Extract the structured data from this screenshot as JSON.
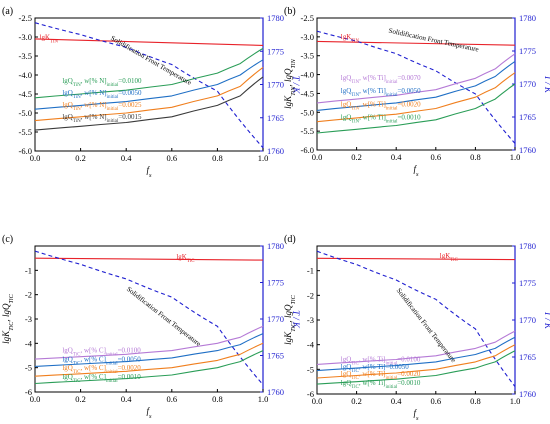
{
  "chart_data": [
    {
      "type": "line",
      "panel_label": "(a)",
      "xlabel": "f_s",
      "ylabel": "",
      "y2label": "T / K",
      "xlim": [
        0,
        1
      ],
      "ylim": [
        -6,
        -2.5
      ],
      "y2lim": [
        1760,
        1780
      ],
      "xticks": [
        "0.0",
        "0.2",
        "0.4",
        "0.6",
        "0.8",
        "1.0"
      ],
      "yticks": [
        "-2.5",
        "-3.0",
        "-3.5",
        "-4.0",
        "-4.5",
        "-5.0",
        "-5.5",
        "-6.0"
      ],
      "y2ticks": [
        "1780",
        "1775",
        "1770",
        "1765",
        "1760"
      ],
      "annotations": [
        {
          "text": "lgK_TiN",
          "color": "#e8232a"
        },
        {
          "text": "Solidification Front Temperature",
          "color": "#000000"
        },
        {
          "text": "lgQ_TiN, w[% N]_initial=0.0100",
          "color": "#2a9d57"
        },
        {
          "text": "lgQ_TiN, w[% N]_initial=0.0050",
          "color": "#1f6fc5"
        },
        {
          "text": "lgQ_TiN, w[% N]_initial=0.0025",
          "color": "#f07f1e"
        },
        {
          "text": "lgQ_TiN, w[% N]_initial=0.0015",
          "color": "#3a3a3a"
        }
      ],
      "series": [
        {
          "name": "lgK",
          "color": "#e8232a",
          "x": [
            0,
            1
          ],
          "y": [
            -3.05,
            -3.22
          ]
        },
        {
          "name": "T",
          "color": "#1f1fd0",
          "axis": "right",
          "dashed": true,
          "x": [
            0,
            0.2,
            0.4,
            0.6,
            0.8,
            1.0
          ],
          "y": [
            1779.3,
            1777.5,
            1775.6,
            1773.0,
            1769.0,
            1760.5
          ]
        },
        {
          "name": "0.0100",
          "color": "#2a9d57",
          "x": [
            0,
            0.2,
            0.4,
            0.6,
            0.8,
            0.9,
            1.0
          ],
          "y": [
            -4.6,
            -4.5,
            -4.4,
            -4.25,
            -3.95,
            -3.7,
            -3.3
          ]
        },
        {
          "name": "0.0050",
          "color": "#1f6fc5",
          "x": [
            0,
            0.2,
            0.4,
            0.6,
            0.8,
            0.9,
            1.0
          ],
          "y": [
            -4.9,
            -4.8,
            -4.7,
            -4.55,
            -4.25,
            -4.0,
            -3.6
          ]
        },
        {
          "name": "0.0025",
          "color": "#f07f1e",
          "x": [
            0,
            0.2,
            0.4,
            0.6,
            0.8,
            0.9,
            1.0
          ],
          "y": [
            -5.2,
            -5.1,
            -5.0,
            -4.85,
            -4.55,
            -4.3,
            -3.8
          ]
        },
        {
          "name": "0.0015",
          "color": "#3a3a3a",
          "x": [
            0,
            0.2,
            0.4,
            0.6,
            0.8,
            0.9,
            1.0
          ],
          "y": [
            -5.45,
            -5.35,
            -5.25,
            -5.1,
            -4.8,
            -4.55,
            -4.05
          ]
        }
      ]
    },
    {
      "type": "line",
      "panel_label": "(b)",
      "xlabel": "f_s",
      "ylabel": "lgK_TiN, lgQ_TiN",
      "y2label": "T / K",
      "xlim": [
        0,
        1
      ],
      "ylim": [
        -6,
        -2.5
      ],
      "y2lim": [
        1760,
        1780
      ],
      "xticks": [
        "0.0",
        "0.2",
        "0.4",
        "0.6",
        "0.8",
        "1.0"
      ],
      "yticks": [
        "-2.5",
        "-3.0",
        "-3.5",
        "-4.0",
        "-4.5",
        "-5.0",
        "-5.5",
        "-6.0"
      ],
      "y2ticks": [
        "1780",
        "1775",
        "1770",
        "1765",
        "1760"
      ],
      "annotations": [
        {
          "text": "lgK_TiN",
          "color": "#e8232a"
        },
        {
          "text": "Solidification Front Temperature",
          "color": "#000000"
        },
        {
          "text": "lgQ_TiN, w[% Ti]_initial=0.0070",
          "color": "#b57ad6"
        },
        {
          "text": "lgQ_TiN, w[% Ti]_initial=0.0050",
          "color": "#1f6fc5"
        },
        {
          "text": "lgQ_TiN, w[% Ti]_initial=0.0020",
          "color": "#f07f1e"
        },
        {
          "text": "lgQ_TiN, w[% Ti]_initial=0.0010",
          "color": "#2a9d57"
        }
      ],
      "series": [
        {
          "name": "lgK",
          "color": "#e8232a",
          "x": [
            0,
            1
          ],
          "y": [
            -3.12,
            -3.22
          ]
        },
        {
          "name": "T",
          "color": "#1f1fd0",
          "axis": "right",
          "dashed": true,
          "x": [
            0,
            0.2,
            0.4,
            0.6,
            0.8,
            1.0
          ],
          "y": [
            1778.0,
            1776.5,
            1774.6,
            1772.0,
            1768.5,
            1761.0
          ]
        },
        {
          "name": "0.0070",
          "color": "#b57ad6",
          "x": [
            0,
            0.2,
            0.4,
            0.6,
            0.8,
            0.9,
            1.0
          ],
          "y": [
            -4.75,
            -4.65,
            -4.55,
            -4.4,
            -4.1,
            -3.85,
            -3.45
          ]
        },
        {
          "name": "0.0050",
          "color": "#1f6fc5",
          "x": [
            0,
            0.2,
            0.4,
            0.6,
            0.8,
            0.9,
            1.0
          ],
          "y": [
            -4.95,
            -4.85,
            -4.75,
            -4.6,
            -4.3,
            -4.05,
            -3.65
          ]
        },
        {
          "name": "0.0020",
          "color": "#f07f1e",
          "x": [
            0,
            0.2,
            0.4,
            0.6,
            0.8,
            0.9,
            1.0
          ],
          "y": [
            -5.25,
            -5.15,
            -5.05,
            -4.9,
            -4.6,
            -4.35,
            -3.95
          ]
        },
        {
          "name": "0.0010",
          "color": "#2a9d57",
          "x": [
            0,
            0.2,
            0.4,
            0.6,
            0.8,
            0.9,
            1.0
          ],
          "y": [
            -5.55,
            -5.45,
            -5.35,
            -5.2,
            -4.9,
            -4.65,
            -4.25
          ]
        }
      ]
    },
    {
      "type": "line",
      "panel_label": "(c)",
      "xlabel": "f_s",
      "ylabel": "lgK_TiC, lgQ_TiC",
      "y2label": "T / K",
      "xlim": [
        0,
        1
      ],
      "ylim": [
        -6,
        0
      ],
      "y2lim": [
        1760,
        1780
      ],
      "xticks": [
        "0.0",
        "0.2",
        "0.4",
        "0.6",
        "0.8",
        "1.0"
      ],
      "yticks": [
        "-1",
        "-2",
        "-3",
        "-4",
        "-5",
        "-6"
      ],
      "y2ticks": [
        "1780",
        "1775",
        "1770",
        "1765",
        "1760"
      ],
      "annotations": [
        {
          "text": "lgK_TiC",
          "color": "#e8232a"
        },
        {
          "text": "Solidification Front Temperature",
          "color": "#000000"
        },
        {
          "text": "lgQ_TiC, w[% C]_initial=0.0100",
          "color": "#b57ad6"
        },
        {
          "text": "lgQ_TiC, w[% C]_initial=0.0050",
          "color": "#1f6fc5"
        },
        {
          "text": "lgQ_TiC, w[% C]_initial=0.0020",
          "color": "#f07f1e"
        },
        {
          "text": "lgQ_TiC, w[% C]_initial=0.0010",
          "color": "#2a9d57"
        }
      ],
      "series": [
        {
          "name": "lgK",
          "color": "#e8232a",
          "x": [
            0,
            1
          ],
          "y": [
            -0.5,
            -0.58
          ]
        },
        {
          "name": "T",
          "color": "#1f1fd0",
          "axis": "right",
          "dashed": true,
          "x": [
            0,
            0.2,
            0.4,
            0.6,
            0.8,
            1.0
          ],
          "y": [
            1779.3,
            1777.5,
            1775.5,
            1773.0,
            1769.0,
            1761.0
          ]
        },
        {
          "name": "0.0100",
          "color": "#b57ad6",
          "x": [
            0,
            0.2,
            0.4,
            0.6,
            0.8,
            0.9,
            1.0
          ],
          "y": [
            -4.65,
            -4.55,
            -4.45,
            -4.3,
            -4.0,
            -3.75,
            -3.3
          ]
        },
        {
          "name": "0.0050",
          "color": "#1f6fc5",
          "x": [
            0,
            0.2,
            0.4,
            0.6,
            0.8,
            0.9,
            1.0
          ],
          "y": [
            -4.95,
            -4.85,
            -4.75,
            -4.6,
            -4.3,
            -4.05,
            -3.6
          ]
        },
        {
          "name": "0.0020",
          "color": "#f07f1e",
          "x": [
            0,
            0.2,
            0.4,
            0.6,
            0.8,
            0.9,
            1.0
          ],
          "y": [
            -5.35,
            -5.25,
            -5.15,
            -5.0,
            -4.7,
            -4.45,
            -4.0
          ]
        },
        {
          "name": "0.0010",
          "color": "#2a9d57",
          "x": [
            0,
            0.2,
            0.4,
            0.6,
            0.8,
            0.9,
            1.0
          ],
          "y": [
            -5.65,
            -5.55,
            -5.45,
            -5.3,
            -5.0,
            -4.75,
            -4.3
          ]
        }
      ]
    },
    {
      "type": "line",
      "panel_label": "(d)",
      "xlabel": "f_s",
      "ylabel": "lgK_TiC, lgQ_TiC",
      "y2label": "T / K",
      "xlim": [
        0,
        1
      ],
      "ylim": [
        -6,
        0
      ],
      "y2lim": [
        1760,
        1780
      ],
      "xticks": [
        "0.0",
        "0.2",
        "0.4",
        "0.6",
        "0.8",
        "1.0"
      ],
      "yticks": [
        "-1",
        "-2",
        "-3",
        "-4",
        "-5",
        "-6"
      ],
      "y2ticks": [
        "1780",
        "1775",
        "1770",
        "1765",
        "1760"
      ],
      "annotations": [
        {
          "text": "lgK_TiC",
          "color": "#e8232a"
        },
        {
          "text": "Solidification Front Temperature",
          "color": "#000000"
        },
        {
          "text": "lgQ_TiC, w[% Ti]_initial=0.0100",
          "color": "#b57ad6"
        },
        {
          "text": "lgQ_TiC, w[% Ti]=0.0050",
          "color": "#1f6fc5"
        },
        {
          "text": "lgQ_TiC, w[% Ti]_initial=0.0020",
          "color": "#f07f1e"
        },
        {
          "text": "lgQ_TiC, w[% Ti]_initial=0.0010",
          "color": "#2a9d57"
        }
      ],
      "series": [
        {
          "name": "lgK",
          "color": "#e8232a",
          "x": [
            0,
            1
          ],
          "y": [
            -0.5,
            -0.55
          ]
        },
        {
          "name": "T",
          "color": "#1f1fd0",
          "axis": "right",
          "dashed": true,
          "x": [
            0,
            0.2,
            0.4,
            0.6,
            0.8,
            1.0
          ],
          "y": [
            1779.3,
            1777.5,
            1775.4,
            1772.8,
            1768.8,
            1761.0
          ]
        },
        {
          "name": "0.0100",
          "color": "#b57ad6",
          "x": [
            0,
            0.2,
            0.4,
            0.6,
            0.8,
            0.9,
            1.0
          ],
          "y": [
            -4.8,
            -4.7,
            -4.6,
            -4.45,
            -4.15,
            -3.9,
            -3.45
          ]
        },
        {
          "name": "0.0050",
          "color": "#1f6fc5",
          "x": [
            0,
            0.2,
            0.4,
            0.6,
            0.8,
            0.9,
            1.0
          ],
          "y": [
            -5.05,
            -4.95,
            -4.85,
            -4.7,
            -4.4,
            -4.15,
            -3.7
          ]
        },
        {
          "name": "0.0020",
          "color": "#f07f1e",
          "x": [
            0,
            0.2,
            0.4,
            0.6,
            0.8,
            0.9,
            1.0
          ],
          "y": [
            -5.35,
            -5.25,
            -5.15,
            -5.0,
            -4.7,
            -4.45,
            -4.0
          ]
        },
        {
          "name": "0.0010",
          "color": "#2a9d57",
          "x": [
            0,
            0.2,
            0.4,
            0.6,
            0.8,
            0.9,
            1.0
          ],
          "y": [
            -5.6,
            -5.5,
            -5.4,
            -5.25,
            -4.95,
            -4.7,
            -4.25
          ]
        }
      ]
    }
  ]
}
